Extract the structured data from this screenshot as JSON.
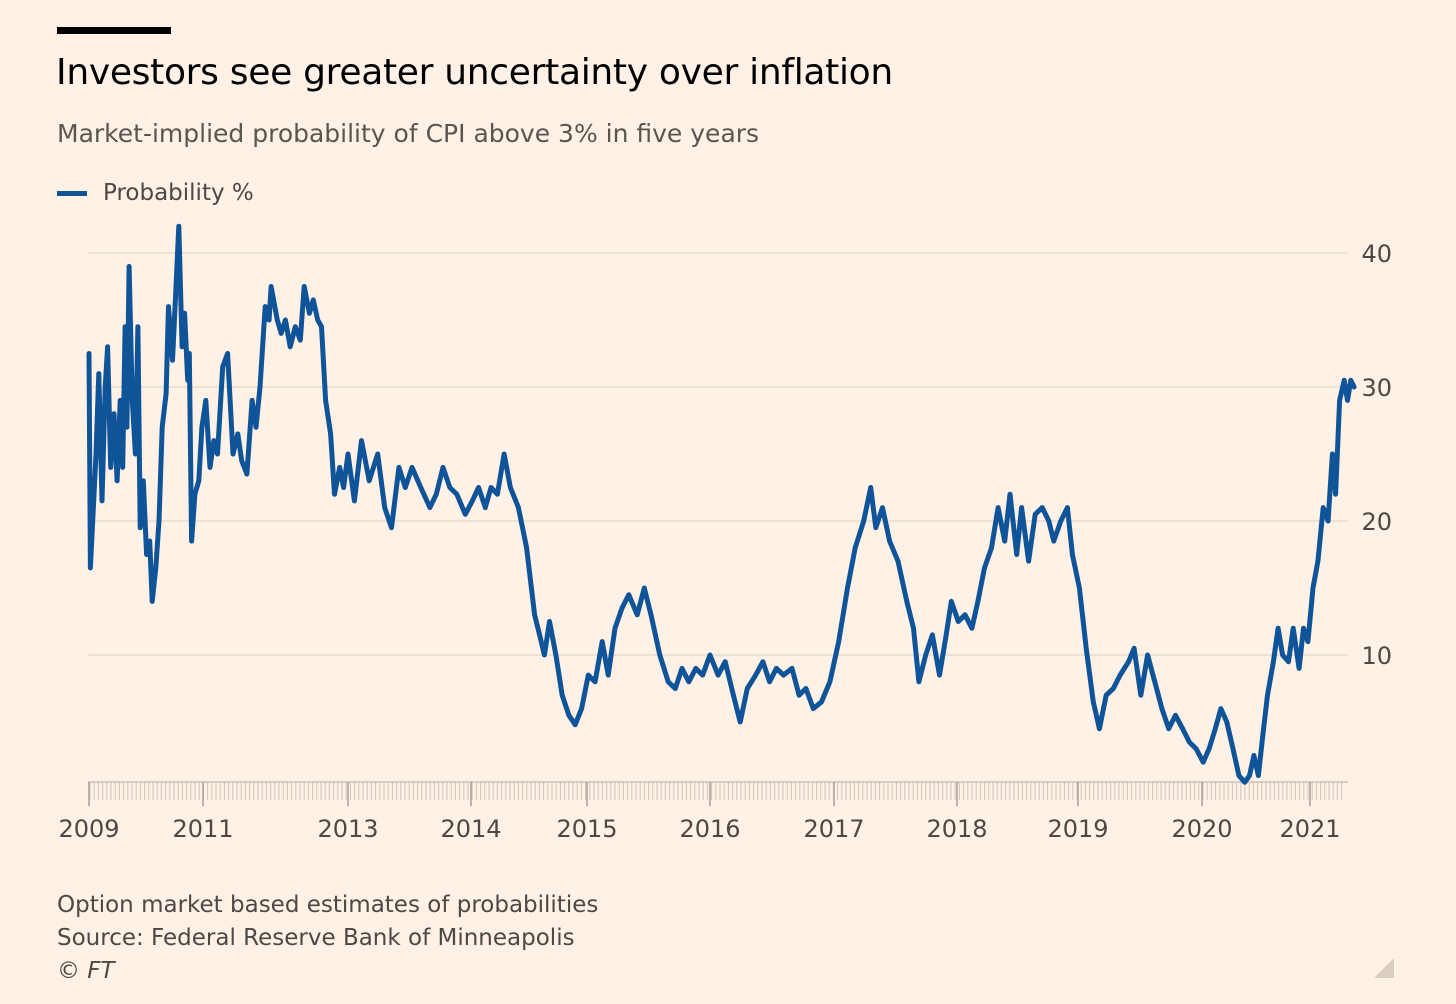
{
  "title": "Investors see greater uncertainty over inflation",
  "subtitle": "Market-implied probability of CPI above 3% in five years",
  "legend": {
    "label": "Probability %",
    "color": "#0f5499"
  },
  "footer": {
    "note": "Option market based estimates of probabilities",
    "source": "Source: Federal Reserve Bank of Minneapolis",
    "copyright": "© FT"
  },
  "chart_data": {
    "type": "line",
    "xlabel": "",
    "ylabel": "",
    "ylim": [
      0,
      42
    ],
    "yticks": [
      10,
      20,
      30,
      40
    ],
    "y_axis_side": "right",
    "grid": true,
    "legend_position": "top-left",
    "x_tick_labels": [
      "2009",
      "2011",
      "2013",
      "2014",
      "2015",
      "2016",
      "2017",
      "2018",
      "2019",
      "2020",
      "2021"
    ],
    "series": [
      {
        "name": "Probability %",
        "color": "#0f5499",
        "points": [
          [
            "2009-01-01",
            32.5
          ],
          [
            "2009-01-10",
            16.5
          ],
          [
            "2009-01-25",
            20
          ],
          [
            "2009-02-15",
            25
          ],
          [
            "2009-03-05",
            31
          ],
          [
            "2009-03-25",
            21.5
          ],
          [
            "2009-04-15",
            30
          ],
          [
            "2009-04-30",
            33
          ],
          [
            "2009-05-20",
            24
          ],
          [
            "2009-06-10",
            28
          ],
          [
            "2009-06-30",
            23
          ],
          [
            "2009-07-20",
            29
          ],
          [
            "2009-08-05",
            24
          ],
          [
            "2009-08-20",
            34.5
          ],
          [
            "2009-09-01",
            27
          ],
          [
            "2009-09-15",
            39
          ],
          [
            "2009-10-05",
            29
          ],
          [
            "2009-10-25",
            25
          ],
          [
            "2009-11-10",
            34.5
          ],
          [
            "2009-11-25",
            19.5
          ],
          [
            "2009-12-15",
            23
          ],
          [
            "2010-01-05",
            17.5
          ],
          [
            "2010-01-25",
            18.5
          ],
          [
            "2010-02-10",
            14
          ],
          [
            "2010-03-05",
            16.5
          ],
          [
            "2010-03-25",
            20
          ],
          [
            "2010-04-15",
            27
          ],
          [
            "2010-05-10",
            29.5
          ],
          [
            "2010-05-25",
            36
          ],
          [
            "2010-06-20",
            32
          ],
          [
            "2010-07-10",
            37
          ],
          [
            "2010-07-30",
            42
          ],
          [
            "2010-08-20",
            33
          ],
          [
            "2010-09-05",
            35.5
          ],
          [
            "2010-09-25",
            30.5
          ],
          [
            "2010-10-05",
            32.5
          ],
          [
            "2010-10-20",
            18.5
          ],
          [
            "2010-11-10",
            22
          ],
          [
            "2010-12-05",
            23
          ],
          [
            "2010-12-25",
            27
          ],
          [
            "2011-01-15",
            29
          ],
          [
            "2011-02-05",
            24
          ],
          [
            "2011-02-25",
            26
          ],
          [
            "2011-03-15",
            25
          ],
          [
            "2011-04-10",
            31.5
          ],
          [
            "2011-05-05",
            32.5
          ],
          [
            "2011-06-01",
            25
          ],
          [
            "2011-06-25",
            26.5
          ],
          [
            "2011-07-15",
            24.5
          ],
          [
            "2011-08-10",
            23.5
          ],
          [
            "2011-09-05",
            29
          ],
          [
            "2011-09-25",
            27
          ],
          [
            "2011-10-15",
            30
          ],
          [
            "2011-11-10",
            36
          ],
          [
            "2011-11-30",
            35
          ],
          [
            "2011-12-10",
            37.5
          ],
          [
            "2012-01-10",
            35
          ],
          [
            "2012-01-30",
            34
          ],
          [
            "2012-02-20",
            35
          ],
          [
            "2012-03-15",
            33
          ],
          [
            "2012-04-10",
            34.5
          ],
          [
            "2012-05-05",
            33.5
          ],
          [
            "2012-05-25",
            37.5
          ],
          [
            "2012-06-20",
            35.5
          ],
          [
            "2012-07-10",
            36.5
          ],
          [
            "2012-08-01",
            35
          ],
          [
            "2012-08-20",
            34.5
          ],
          [
            "2012-09-10",
            29
          ],
          [
            "2012-10-05",
            26.5
          ],
          [
            "2012-10-25",
            22
          ],
          [
            "2012-11-20",
            24
          ],
          [
            "2012-12-10",
            22.5
          ],
          [
            "2013-01-01",
            25
          ],
          [
            "2013-01-20",
            21.5
          ],
          [
            "2013-02-10",
            26
          ],
          [
            "2013-03-05",
            23
          ],
          [
            "2013-03-30",
            25
          ],
          [
            "2013-04-20",
            21
          ],
          [
            "2013-05-10",
            19.5
          ],
          [
            "2013-06-01",
            24
          ],
          [
            "2013-06-20",
            22.5
          ],
          [
            "2013-07-10",
            24
          ],
          [
            "2013-08-05",
            22.5
          ],
          [
            "2013-09-01",
            21
          ],
          [
            "2013-09-20",
            22
          ],
          [
            "2013-10-10",
            24
          ],
          [
            "2013-10-30",
            22.5
          ],
          [
            "2013-11-20",
            22
          ],
          [
            "2013-12-15",
            20.5
          ],
          [
            "2014-01-05",
            21.5
          ],
          [
            "2014-01-25",
            22.5
          ],
          [
            "2014-02-15",
            21
          ],
          [
            "2014-03-05",
            22.5
          ],
          [
            "2014-03-25",
            22
          ],
          [
            "2014-04-15",
            25
          ],
          [
            "2014-05-05",
            22.5
          ],
          [
            "2014-05-30",
            21
          ],
          [
            "2014-06-25",
            18
          ],
          [
            "2014-07-20",
            13
          ],
          [
            "2014-08-05",
            11.5
          ],
          [
            "2014-08-20",
            10
          ],
          [
            "2014-09-05",
            12.5
          ],
          [
            "2014-09-25",
            10
          ],
          [
            "2014-10-15",
            7
          ],
          [
            "2014-11-05",
            5.5
          ],
          [
            "2014-11-25",
            4.8
          ],
          [
            "2014-12-15",
            6
          ],
          [
            "2015-01-05",
            8.5
          ],
          [
            "2015-01-25",
            8
          ],
          [
            "2015-02-15",
            11
          ],
          [
            "2015-03-05",
            8.5
          ],
          [
            "2015-03-25",
            12
          ],
          [
            "2015-04-15",
            13.5
          ],
          [
            "2015-05-05",
            14.5
          ],
          [
            "2015-05-30",
            13
          ],
          [
            "2015-06-20",
            15
          ],
          [
            "2015-07-10",
            13
          ],
          [
            "2015-08-05",
            10
          ],
          [
            "2015-08-30",
            8
          ],
          [
            "2015-09-20",
            7.5
          ],
          [
            "2015-10-10",
            9
          ],
          [
            "2015-10-30",
            8
          ],
          [
            "2015-11-20",
            9
          ],
          [
            "2015-12-10",
            8.5
          ],
          [
            "2016-01-01",
            10
          ],
          [
            "2016-01-25",
            8.5
          ],
          [
            "2016-02-15",
            9.5
          ],
          [
            "2016-03-10",
            7
          ],
          [
            "2016-03-30",
            5
          ],
          [
            "2016-04-20",
            7.5
          ],
          [
            "2016-05-15",
            8.5
          ],
          [
            "2016-06-05",
            9.5
          ],
          [
            "2016-06-25",
            8
          ],
          [
            "2016-07-15",
            9
          ],
          [
            "2016-08-05",
            8.5
          ],
          [
            "2016-08-30",
            9
          ],
          [
            "2016-09-20",
            7
          ],
          [
            "2016-10-10",
            7.5
          ],
          [
            "2016-11-01",
            6
          ],
          [
            "2016-11-25",
            6.5
          ],
          [
            "2016-12-20",
            8
          ],
          [
            "2017-01-15",
            11
          ],
          [
            "2017-02-10",
            15
          ],
          [
            "2017-03-05",
            18
          ],
          [
            "2017-03-30",
            20
          ],
          [
            "2017-04-20",
            22.5
          ],
          [
            "2017-05-05",
            19.5
          ],
          [
            "2017-05-25",
            21
          ],
          [
            "2017-06-15",
            18.5
          ],
          [
            "2017-07-10",
            17
          ],
          [
            "2017-08-05",
            14
          ],
          [
            "2017-08-25",
            12
          ],
          [
            "2017-09-10",
            8
          ],
          [
            "2017-09-30",
            10
          ],
          [
            "2017-10-20",
            11.5
          ],
          [
            "2017-11-10",
            8.5
          ],
          [
            "2017-11-30",
            11.5
          ],
          [
            "2017-12-15",
            14
          ],
          [
            "2018-01-05",
            12.5
          ],
          [
            "2018-01-25",
            13
          ],
          [
            "2018-02-15",
            12
          ],
          [
            "2018-03-05",
            14
          ],
          [
            "2018-03-25",
            16.5
          ],
          [
            "2018-04-15",
            18
          ],
          [
            "2018-05-05",
            21
          ],
          [
            "2018-05-25",
            18.5
          ],
          [
            "2018-06-10",
            22
          ],
          [
            "2018-06-30",
            17.5
          ],
          [
            "2018-07-15",
            21
          ],
          [
            "2018-08-05",
            17
          ],
          [
            "2018-08-25",
            20.5
          ],
          [
            "2018-09-15",
            21
          ],
          [
            "2018-10-05",
            20
          ],
          [
            "2018-10-20",
            18.5
          ],
          [
            "2018-11-10",
            20
          ],
          [
            "2018-11-30",
            21
          ],
          [
            "2018-12-15",
            17.5
          ],
          [
            "2019-01-05",
            15
          ],
          [
            "2019-01-25",
            10.5
          ],
          [
            "2019-02-15",
            6.5
          ],
          [
            "2019-03-05",
            4.5
          ],
          [
            "2019-03-25",
            7
          ],
          [
            "2019-04-15",
            7.5
          ],
          [
            "2019-05-05",
            8.5
          ],
          [
            "2019-05-30",
            9.5
          ],
          [
            "2019-06-15",
            10.5
          ],
          [
            "2019-07-05",
            7
          ],
          [
            "2019-07-25",
            10
          ],
          [
            "2019-08-15",
            8
          ],
          [
            "2019-09-05",
            6
          ],
          [
            "2019-09-25",
            4.5
          ],
          [
            "2019-10-15",
            5.5
          ],
          [
            "2019-11-05",
            4.5
          ],
          [
            "2019-11-25",
            3.5
          ],
          [
            "2019-12-15",
            3
          ],
          [
            "2020-01-05",
            2
          ],
          [
            "2020-01-25",
            3
          ],
          [
            "2020-02-15",
            4.5
          ],
          [
            "2020-03-05",
            6
          ],
          [
            "2020-03-25",
            5
          ],
          [
            "2020-04-15",
            3
          ],
          [
            "2020-05-05",
            1
          ],
          [
            "2020-05-25",
            0.5
          ],
          [
            "2020-06-10",
            1
          ],
          [
            "2020-06-25",
            2.5
          ],
          [
            "2020-07-10",
            1
          ],
          [
            "2020-07-25",
            4
          ],
          [
            "2020-08-10",
            7
          ],
          [
            "2020-08-30",
            9.5
          ],
          [
            "2020-09-15",
            12
          ],
          [
            "2020-09-30",
            10
          ],
          [
            "2020-10-20",
            9.5
          ],
          [
            "2020-11-05",
            12
          ],
          [
            "2020-11-25",
            9
          ],
          [
            "2020-12-10",
            12
          ],
          [
            "2020-12-25",
            11
          ],
          [
            "2021-01-10",
            15
          ],
          [
            "2021-01-25",
            17
          ],
          [
            "2021-02-10",
            21
          ],
          [
            "2021-02-25",
            20
          ],
          [
            "2021-03-10",
            25
          ],
          [
            "2021-03-20",
            22
          ],
          [
            "2021-04-01",
            29
          ],
          [
            "2021-04-15",
            30.5
          ],
          [
            "2021-04-25",
            29
          ],
          [
            "2021-05-05",
            30.5
          ],
          [
            "2021-05-15",
            30
          ]
        ]
      }
    ]
  }
}
